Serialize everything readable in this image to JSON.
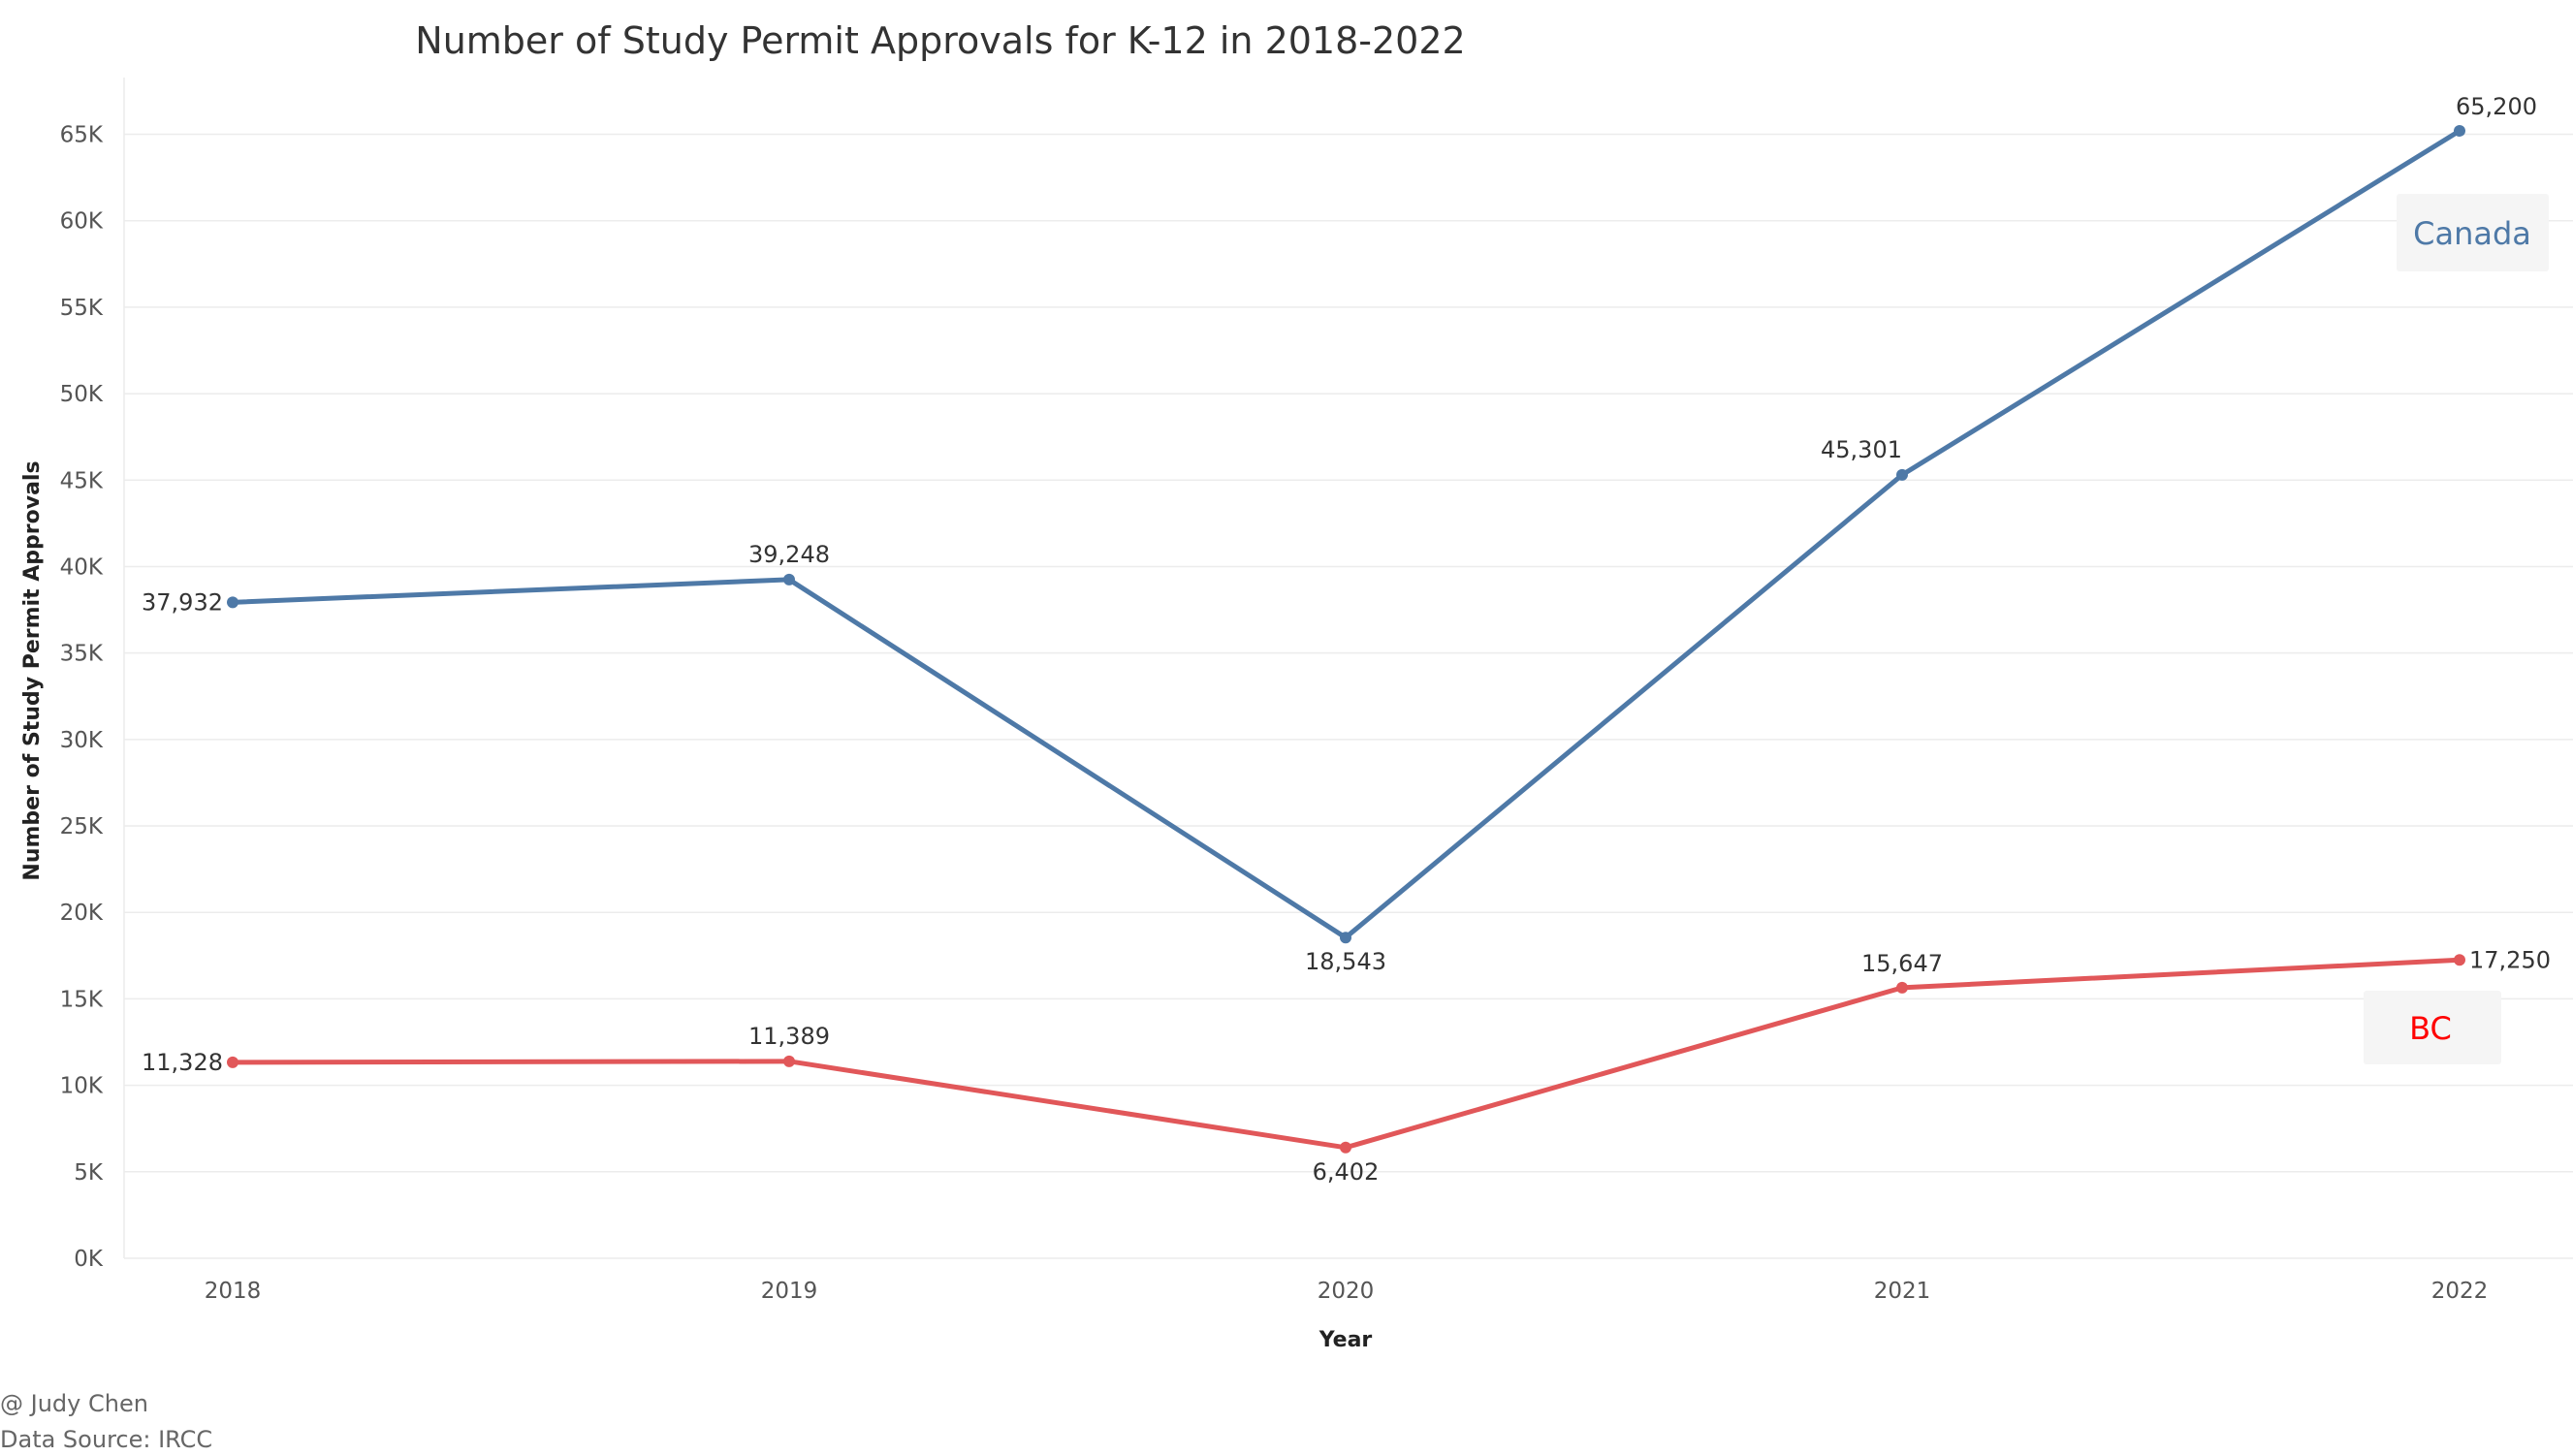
{
  "chart_data": {
    "type": "line",
    "title": "Number of Study Permit Approvals for K-12 in 2018-2022",
    "xlabel": "Year",
    "ylabel": "Number of Study Permit Approvals",
    "categories": [
      "2018",
      "2019",
      "2020",
      "2021",
      "2022"
    ],
    "ylim": [
      0,
      68000
    ],
    "yticks": [
      {
        "value": 0,
        "label": "0K"
      },
      {
        "value": 5000,
        "label": "5K"
      },
      {
        "value": 10000,
        "label": "10K"
      },
      {
        "value": 15000,
        "label": "15K"
      },
      {
        "value": 20000,
        "label": "20K"
      },
      {
        "value": 25000,
        "label": "25K"
      },
      {
        "value": 30000,
        "label": "30K"
      },
      {
        "value": 35000,
        "label": "35K"
      },
      {
        "value": 40000,
        "label": "40K"
      },
      {
        "value": 45000,
        "label": "45K"
      },
      {
        "value": 50000,
        "label": "50K"
      },
      {
        "value": 55000,
        "label": "55K"
      },
      {
        "value": 60000,
        "label": "60K"
      },
      {
        "value": 65000,
        "label": "65K"
      }
    ],
    "grid": true,
    "series": [
      {
        "name": "Canada",
        "color": "#4e79a7",
        "values": [
          37932,
          39248,
          18543,
          45301,
          65200
        ],
        "labels": [
          "37,932",
          "39,248",
          "18,543",
          "45,301",
          "65,200"
        ]
      },
      {
        "name": "BC",
        "color": "#e15759",
        "values": [
          11328,
          11389,
          6402,
          15647,
          17250
        ],
        "labels": [
          "11,328",
          "11,389",
          "6,402",
          "15,647",
          "17,250"
        ]
      }
    ],
    "legend_colors": {
      "Canada": "#4e79a7",
      "BC": "#ff0000"
    }
  },
  "footer": {
    "author": "@ Judy Chen",
    "source": "Data Source: IRCC"
  }
}
